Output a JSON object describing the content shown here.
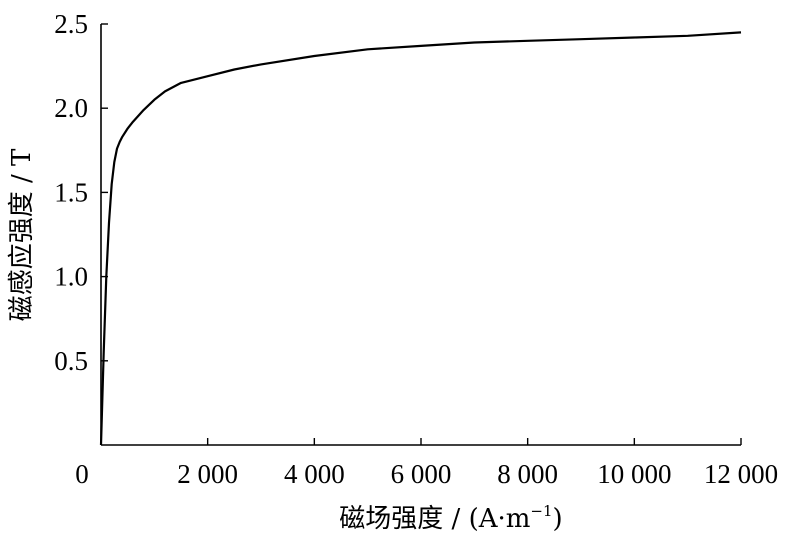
{
  "chart_data": {
    "type": "line",
    "title": "",
    "xlabel": "磁场强度 / (A·m⁻¹)",
    "xlabel_main": "磁场强度 / (A·m",
    "xlabel_sup": "−1",
    "xlabel_close": ")",
    "ylabel": "磁感应强度 / T",
    "xlim": [
      0,
      12000
    ],
    "ylim": [
      0,
      2.5
    ],
    "x_origin_label": "0",
    "xticks": [
      2000,
      4000,
      6000,
      8000,
      10000,
      12000
    ],
    "xtick_labels": [
      "2 000",
      "4 000",
      "6 000",
      "8 000",
      "10 000",
      "12 000"
    ],
    "yticks": [
      0.5,
      1.0,
      1.5,
      2.0,
      2.5
    ],
    "ytick_labels": [
      "0.5",
      "1.0",
      "1.5",
      "2.0",
      "2.5"
    ],
    "grid": false,
    "series": [
      {
        "x": [
          0,
          50,
          100,
          150,
          200,
          250,
          300,
          350,
          400,
          500,
          600,
          800,
          1000,
          1200,
          1500,
          2000,
          2500,
          3000,
          4000,
          5000,
          6000,
          7000,
          8000,
          9000,
          10000,
          11000,
          12000
        ],
        "y": [
          0,
          0.55,
          1.0,
          1.32,
          1.55,
          1.68,
          1.76,
          1.8,
          1.83,
          1.88,
          1.92,
          1.99,
          2.05,
          2.1,
          2.15,
          2.19,
          2.23,
          2.26,
          2.31,
          2.35,
          2.37,
          2.39,
          2.4,
          2.41,
          2.42,
          2.43,
          2.45
        ]
      }
    ]
  }
}
